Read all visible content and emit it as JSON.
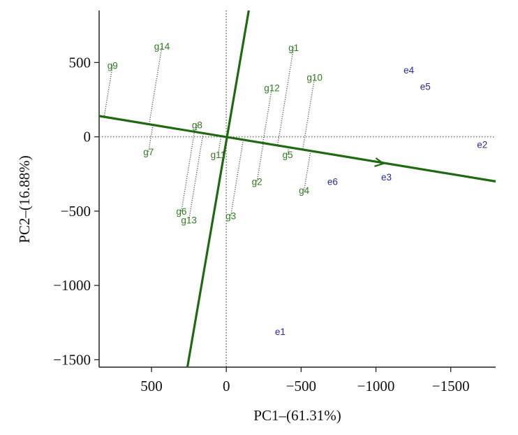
{
  "chart_data": {
    "type": "scatter",
    "title": "",
    "xlabel": "PC1–(61.31%)",
    "ylabel": "PC2–(16.88%)",
    "x_reversed": true,
    "xlim": [
      850,
      -1800
    ],
    "ylim": [
      -1550,
      850
    ],
    "x_ticks": [
      500,
      0,
      -500,
      -1000,
      -1500
    ],
    "x_tick_labels": [
      "500",
      "0",
      "−500",
      "−1000",
      "−1500"
    ],
    "y_ticks": [
      500,
      0,
      -500,
      -1000,
      -1500
    ],
    "y_tick_labels": [
      "500",
      "0",
      "−500",
      "−1000",
      "−1500"
    ],
    "grid": false,
    "series": [
      {
        "name": "",
        "color": "#2e7d1e",
        "points": [
          {
            "label": "g1",
            "x": -450,
            "y": 600
          },
          {
            "label": "g2",
            "x": -205,
            "y": -300
          },
          {
            "label": "g3",
            "x": -30,
            "y": -530
          },
          {
            "label": "g4",
            "x": -520,
            "y": -360
          },
          {
            "label": "g5",
            "x": -410,
            "y": -120
          },
          {
            "label": "g6",
            "x": 300,
            "y": -500
          },
          {
            "label": "g7",
            "x": 520,
            "y": -100
          },
          {
            "label": "g8",
            "x": 195,
            "y": 80
          },
          {
            "label": "g9",
            "x": 760,
            "y": 480
          },
          {
            "label": "g10",
            "x": -590,
            "y": 400
          },
          {
            "label": "g11",
            "x": 55,
            "y": -120
          },
          {
            "label": "g12",
            "x": -305,
            "y": 330
          },
          {
            "label": "g13",
            "x": 250,
            "y": -560
          },
          {
            "label": "g14",
            "x": 430,
            "y": 610
          }
        ]
      },
      {
        "name": "",
        "color": "#2a2a9a",
        "points": [
          {
            "label": "e1",
            "x": -360,
            "y": -1310
          },
          {
            "label": "e2",
            "x": -1710,
            "y": -50
          },
          {
            "label": "e3",
            "x": -1070,
            "y": -270
          },
          {
            "label": "e4",
            "x": -1220,
            "y": 450
          },
          {
            "label": "e5",
            "x": -1330,
            "y": 340
          },
          {
            "label": "e6",
            "x": -710,
            "y": -300
          }
        ]
      }
    ],
    "biplot_axes": {
      "color": "#1f6a10",
      "main_axis": {
        "from": [
          850,
          140
        ],
        "to": [
          -1800,
          -300
        ],
        "arrow_at": [
          -1050,
          -180
        ]
      },
      "perpendicular_axis": {
        "from": [
          -150,
          850
        ],
        "to": [
          260,
          -1550
        ]
      }
    },
    "reference_lines": {
      "x": 0,
      "y": 0,
      "style": "dotted"
    }
  }
}
